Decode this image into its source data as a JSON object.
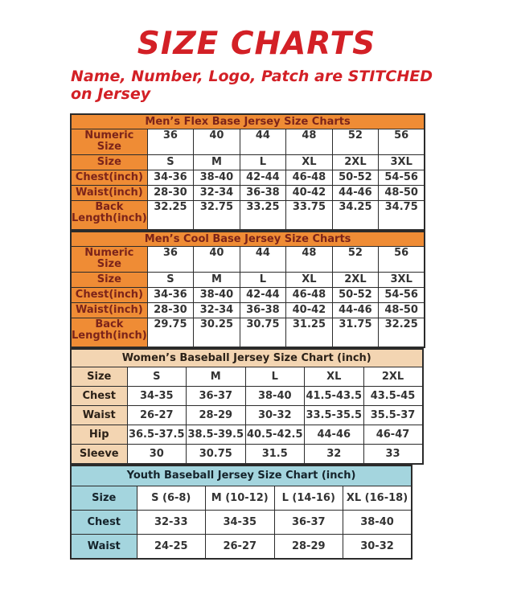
{
  "page": {
    "title": "SIZE CHARTS",
    "subtitle_line1": "Name, Number, Logo, Patch are STITCHED",
    "subtitle_line2": "on Jersey"
  },
  "colors": {
    "title_red": "#d32026",
    "orange_header": "#ef8c35",
    "orange_header_text": "#7c241a",
    "peach_header": "#f3d5b2",
    "blue_header": "#a4d5de",
    "data_text": "#333333"
  },
  "tables": [
    {
      "id": "mens-flex-base",
      "title": "Men’s Flex Base Jersey Size Charts",
      "theme": "orange",
      "rows": [
        {
          "label": "Numeric Size",
          "values": [
            "36",
            "40",
            "44",
            "48",
            "52",
            "56"
          ]
        },
        {
          "label": "Size",
          "values": [
            "S",
            "M",
            "L",
            "XL",
            "2XL",
            "3XL"
          ]
        },
        {
          "label": "Chest(inch)",
          "values": [
            "34-36",
            "38-40",
            "42-44",
            "46-48",
            "50-52",
            "54-56"
          ]
        },
        {
          "label": "Waist(inch)",
          "values": [
            "28-30",
            "32-34",
            "36-38",
            "40-42",
            "44-46",
            "48-50"
          ]
        },
        {
          "label": "Back Length(inch)",
          "values": [
            "32.25",
            "32.75",
            "33.25",
            "33.75",
            "34.25",
            "34.75"
          ]
        }
      ]
    },
    {
      "id": "mens-cool-base",
      "title": "Men’s Cool Base Jersey Size Charts",
      "theme": "orange",
      "rows": [
        {
          "label": "Numeric Size",
          "values": [
            "36",
            "40",
            "44",
            "48",
            "52",
            "56"
          ]
        },
        {
          "label": "Size",
          "values": [
            "S",
            "M",
            "L",
            "XL",
            "2XL",
            "3XL"
          ]
        },
        {
          "label": "Chest(inch)",
          "values": [
            "34-36",
            "38-40",
            "42-44",
            "46-48",
            "50-52",
            "54-56"
          ]
        },
        {
          "label": "Waist(inch)",
          "values": [
            "28-30",
            "32-34",
            "36-38",
            "40-42",
            "44-46",
            "48-50"
          ]
        },
        {
          "label": "Back Length(inch)",
          "values": [
            "29.75",
            "30.25",
            "30.75",
            "31.25",
            "31.75",
            "32.25"
          ]
        }
      ]
    },
    {
      "id": "womens-baseball",
      "title": "Women’s Baseball Jersey Size Chart (inch)",
      "theme": "peach",
      "rows": [
        {
          "label": "Size",
          "values": [
            "S",
            "M",
            "L",
            "XL",
            "2XL"
          ]
        },
        {
          "label": "Chest",
          "values": [
            "34-35",
            "36-37",
            "38-40",
            "41.5-43.5",
            "43.5-45"
          ]
        },
        {
          "label": "Waist",
          "values": [
            "26-27",
            "28-29",
            "30-32",
            "33.5-35.5",
            "35.5-37"
          ]
        },
        {
          "label": "Hip",
          "values": [
            "36.5-37.5",
            "38.5-39.5",
            "40.5-42.5",
            "44-46",
            "46-47"
          ]
        },
        {
          "label": "Sleeve",
          "values": [
            "30",
            "30.75",
            "31.5",
            "32",
            "33"
          ]
        }
      ]
    },
    {
      "id": "youth-baseball",
      "title": "Youth Baseball Jersey Size Chart (inch)",
      "theme": "blue",
      "rows": [
        {
          "label": "Size",
          "values": [
            "S (6-8)",
            "M (10-12)",
            "L (14-16)",
            "XL (16-18)"
          ]
        },
        {
          "label": "Chest",
          "values": [
            "32-33",
            "34-35",
            "36-37",
            "38-40"
          ]
        },
        {
          "label": "Waist",
          "values": [
            "24-25",
            "26-27",
            "28-29",
            "30-32"
          ]
        }
      ]
    }
  ]
}
